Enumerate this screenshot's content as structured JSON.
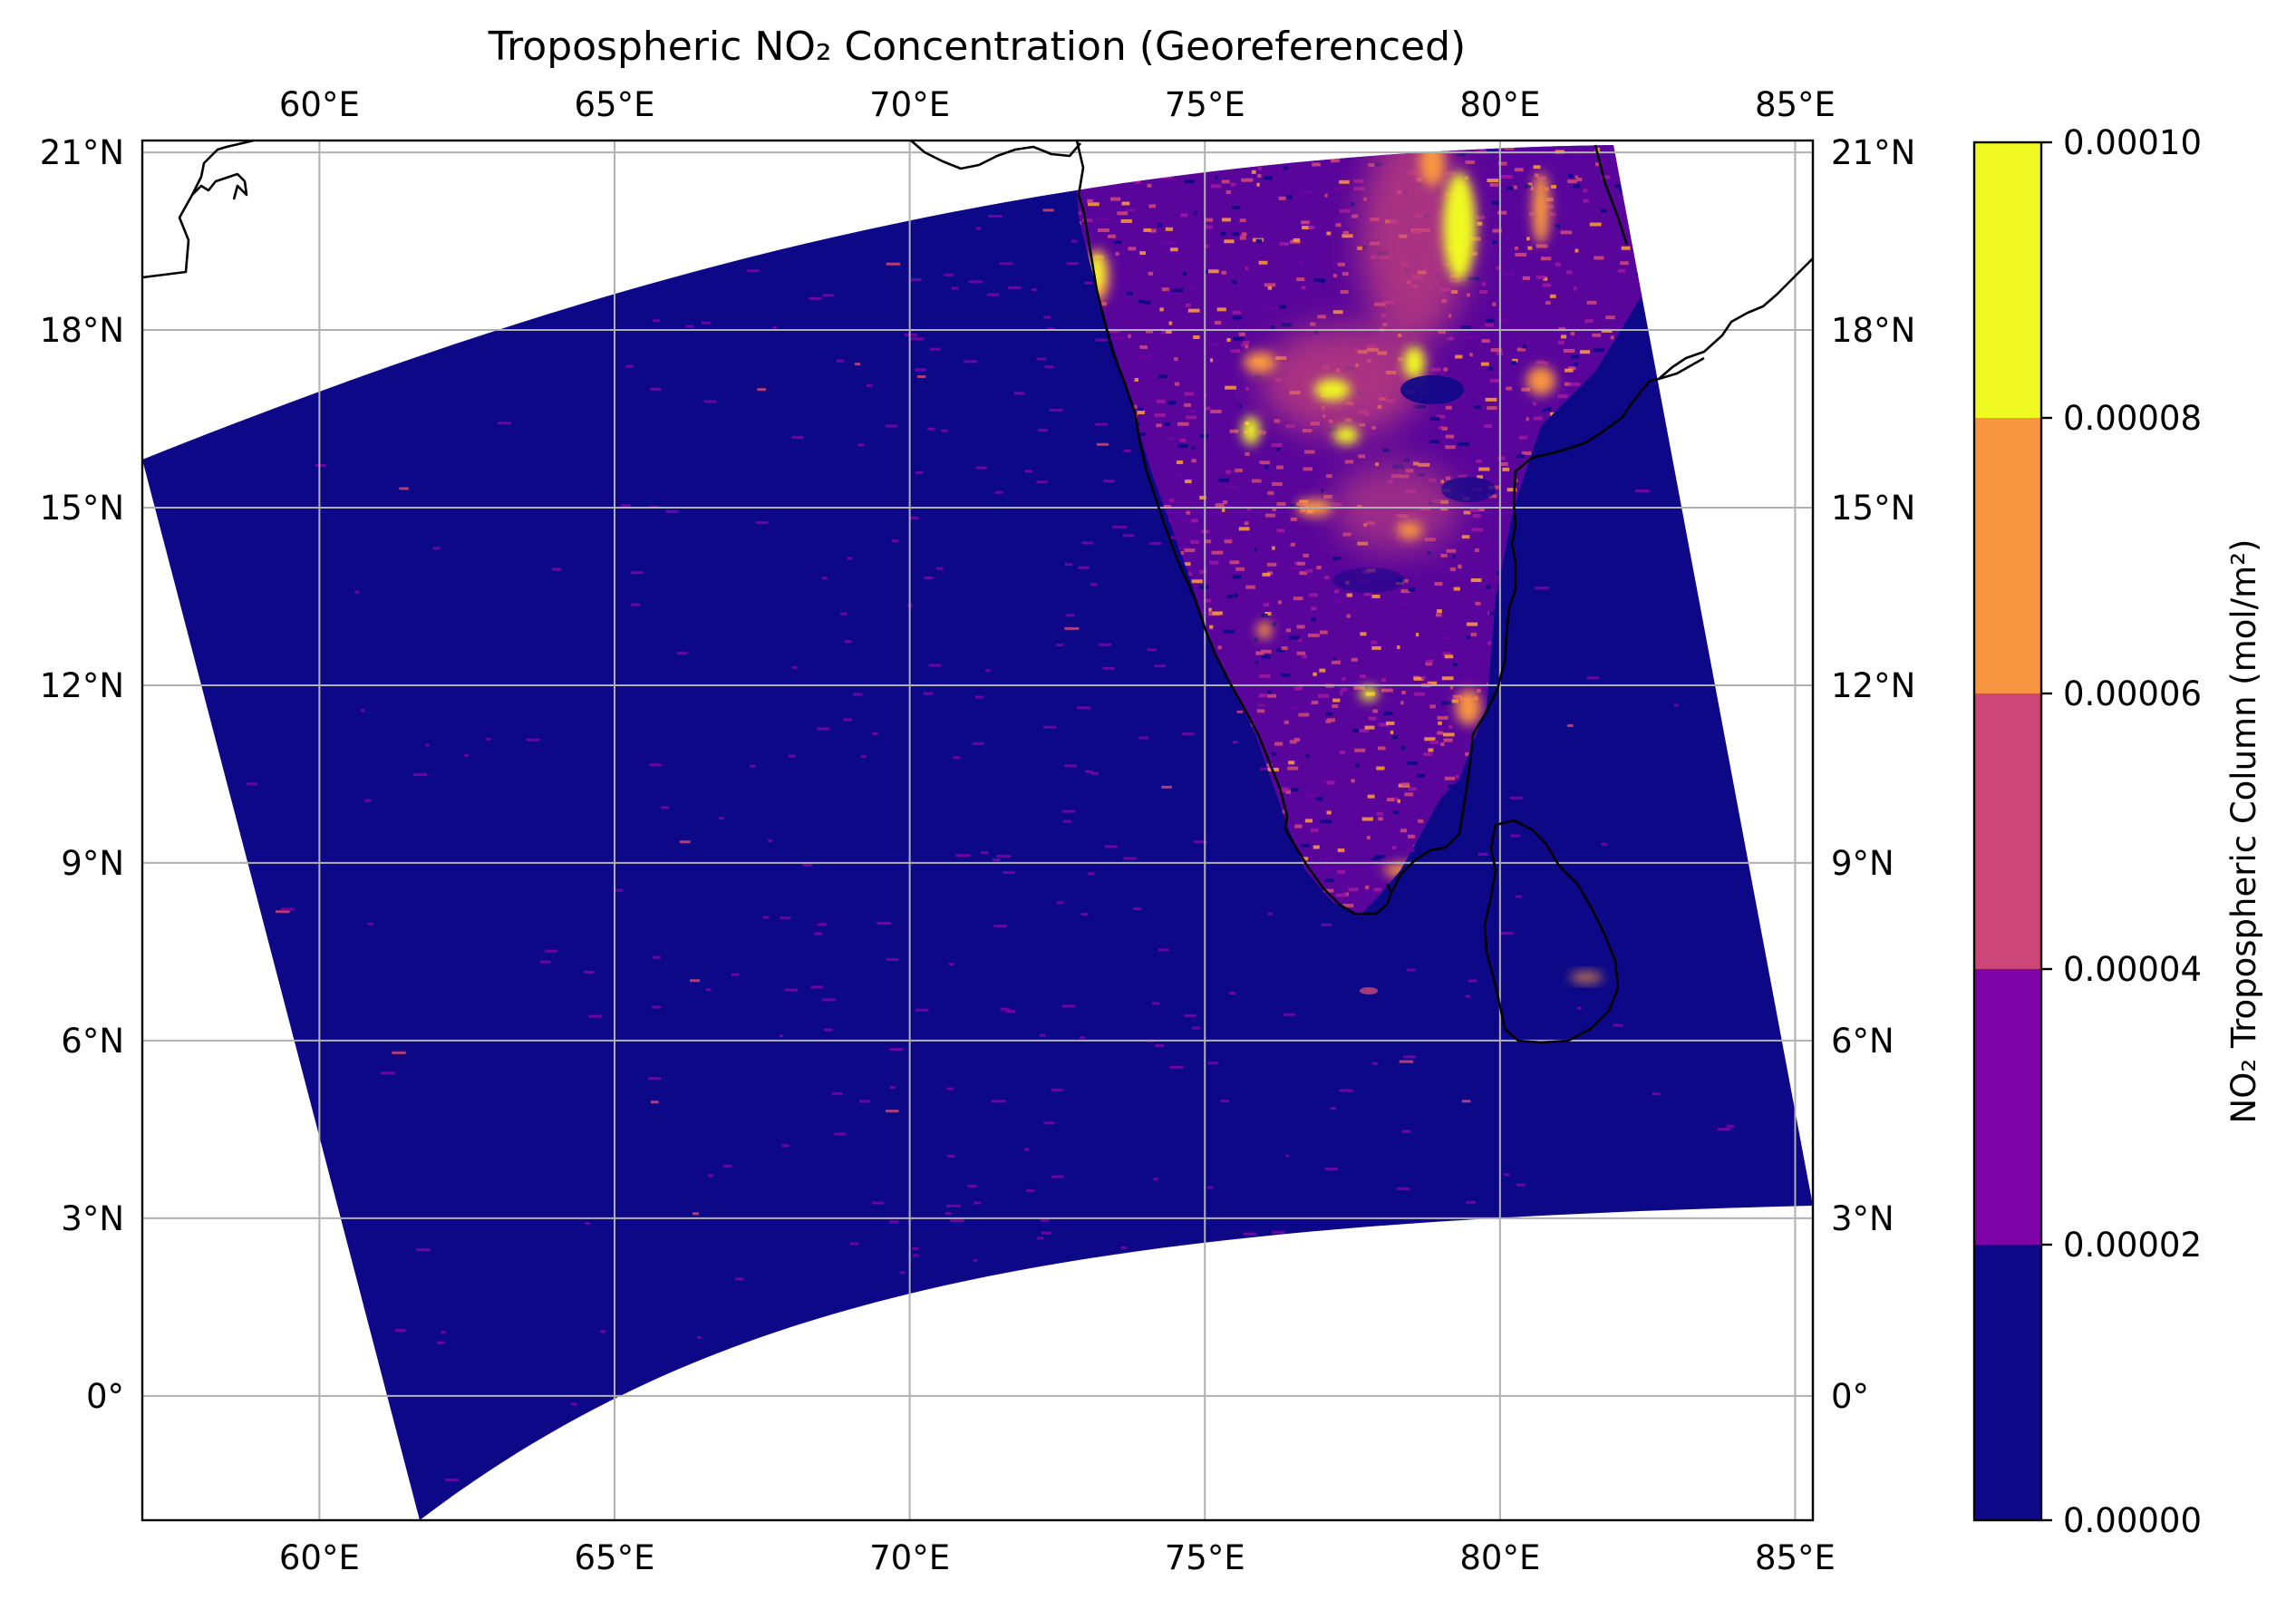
{
  "title": "Tropospheric NO₂ Concentration (Georeferenced)",
  "map": {
    "lon_range": [
      57.0,
      85.3
    ],
    "lat_range": [
      -2.1,
      21.2
    ],
    "lon_ticks": [
      {
        "value": 60,
        "label": "60°E"
      },
      {
        "value": 65,
        "label": "65°E"
      },
      {
        "value": 70,
        "label": "70°E"
      },
      {
        "value": 75,
        "label": "75°E"
      },
      {
        "value": 80,
        "label": "80°E"
      },
      {
        "value": 85,
        "label": "85°E"
      }
    ],
    "lat_ticks": [
      {
        "value": 21,
        "label": "21°N"
      },
      {
        "value": 18,
        "label": "18°N"
      },
      {
        "value": 15,
        "label": "15°N"
      },
      {
        "value": 12,
        "label": "12°N"
      },
      {
        "value": 9,
        "label": "9°N"
      },
      {
        "value": 6,
        "label": "6°N"
      },
      {
        "value": 3,
        "label": "3°N"
      },
      {
        "value": 0,
        "label": "0°"
      }
    ],
    "gridlines": true,
    "swath_color": "#0d0887",
    "grid_color": "#b0b0b0",
    "coastline_color": "#000000"
  },
  "colorbar": {
    "label": "NO₂ Tropospheric Column (mol/m²)",
    "bins": [
      {
        "from": 0.0,
        "to": 2e-05,
        "color": "#0d0887"
      },
      {
        "from": 2e-05,
        "to": 4e-05,
        "color": "#7e03a8"
      },
      {
        "from": 4e-05,
        "to": 6e-05,
        "color": "#cc4778"
      },
      {
        "from": 6e-05,
        "to": 8e-05,
        "color": "#f89540"
      },
      {
        "from": 8e-05,
        "to": 0.0001,
        "color": "#f0f921"
      }
    ],
    "ticks": [
      {
        "value": 0.0,
        "label": "0.00000"
      },
      {
        "value": 2e-05,
        "label": "0.00002"
      },
      {
        "value": 4e-05,
        "label": "0.00004"
      },
      {
        "value": 6e-05,
        "label": "0.00006"
      },
      {
        "value": 8e-05,
        "label": "0.00008"
      },
      {
        "value": 0.0001,
        "label": "0.00010"
      }
    ]
  }
}
